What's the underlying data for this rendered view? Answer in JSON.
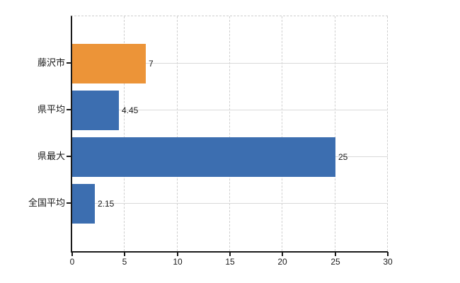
{
  "chart_data": {
    "type": "bar",
    "orientation": "horizontal",
    "title": "",
    "categories": [
      "藤沢市",
      "県平均",
      "県最大",
      "全国平均"
    ],
    "values": [
      7,
      4.45,
      25,
      2.15
    ],
    "value_labels": [
      "7",
      "4.45",
      "25",
      "2.15"
    ],
    "bar_colors": [
      "#EC9438",
      "#3C6EB0",
      "#3C6EB0",
      "#3C6EB0"
    ],
    "xlim": [
      0,
      30
    ],
    "x_ticks": [
      0,
      5,
      10,
      15,
      20,
      25,
      30
    ],
    "grid": true,
    "legend": false
  },
  "colors": {
    "orange_bar": "#EC9438",
    "blue_bar": "#3C6EB0",
    "axis": "#1a1a1a",
    "grid_solid": "#d9d9d9",
    "grid_dashed": "#cfcfcf",
    "text": "#1a1a1a",
    "background": "#ffffff"
  }
}
